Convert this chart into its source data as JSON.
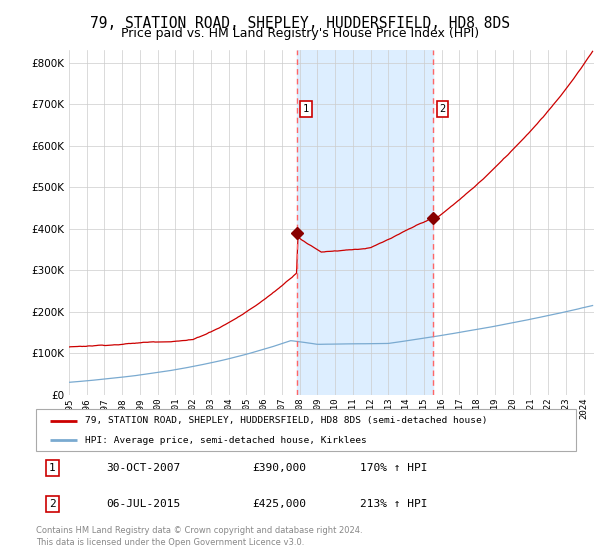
{
  "title": "79, STATION ROAD, SHEPLEY, HUDDERSFIELD, HD8 8DS",
  "subtitle": "Price paid vs. HM Land Registry's House Price Index (HPI)",
  "title_fontsize": 10.5,
  "subtitle_fontsize": 9,
  "xlim_start": 1995.0,
  "xlim_end": 2024.58,
  "ylim": [
    0,
    830000
  ],
  "yticks": [
    0,
    100000,
    200000,
    300000,
    400000,
    500000,
    600000,
    700000,
    800000
  ],
  "ytick_labels": [
    "£0",
    "£100K",
    "£200K",
    "£300K",
    "£400K",
    "£500K",
    "£600K",
    "£700K",
    "£800K"
  ],
  "xticks": [
    1995,
    1996,
    1997,
    1998,
    1999,
    2000,
    2001,
    2002,
    2003,
    2004,
    2005,
    2006,
    2007,
    2008,
    2009,
    2010,
    2011,
    2012,
    2013,
    2014,
    2015,
    2016,
    2017,
    2018,
    2019,
    2020,
    2021,
    2022,
    2023,
    2024
  ],
  "red_line_color": "#cc0000",
  "blue_line_color": "#7aaad0",
  "shade_color": "#ddeeff",
  "dashed_line_color": "#ff6666",
  "marker_color": "#880000",
  "grid_color": "#cccccc",
  "bg_color": "#ffffff",
  "event1_x": 2007.83,
  "event1_y": 390000,
  "event1_label": "1",
  "event2_x": 2015.51,
  "event2_y": 425000,
  "event2_label": "2",
  "legend_line1": "79, STATION ROAD, SHEPLEY, HUDDERSFIELD, HD8 8DS (semi-detached house)",
  "legend_line2": "HPI: Average price, semi-detached house, Kirklees",
  "table_row1": [
    "1",
    "30-OCT-2007",
    "£390,000",
    "170% ↑ HPI"
  ],
  "table_row2": [
    "2",
    "06-JUL-2015",
    "£425,000",
    "213% ↑ HPI"
  ],
  "footnote1": "Contains HM Land Registry data © Crown copyright and database right 2024.",
  "footnote2": "This data is licensed under the Open Government Licence v3.0."
}
